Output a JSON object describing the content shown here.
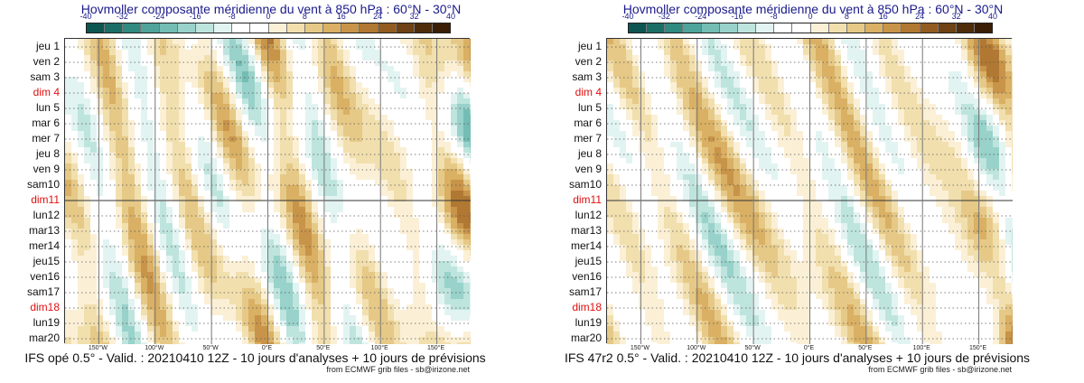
{
  "colorbar": {
    "ticks": [
      "-40",
      "-32",
      "-24",
      "-16",
      "-8",
      "0",
      "8",
      "16",
      "24",
      "32",
      "40"
    ],
    "colors": [
      "#0d5550",
      "#1a6e66",
      "#2f8a80",
      "#4ea39a",
      "#74bdb4",
      "#98d2ca",
      "#bee4de",
      "#e2f4f2",
      "#ffffff",
      "#ffffff",
      "#fbf0d6",
      "#f1dfae",
      "#e6c987",
      "#d9b064",
      "#c8944a",
      "#b07832",
      "#925c20",
      "#6e4214",
      "#4e2c0a",
      "#3a1f06"
    ]
  },
  "chart_data": [
    {
      "type": "heatmap",
      "title": "Hovmoller composante méridienne du vent à 850 hPa : 60°N - 30°N",
      "caption": "IFS opé 0.5° - Valid. : 20210410 12Z - 10 jours d'analyses + 10 jours de prévisions",
      "credit": "from ECMWF grib files - sb@irizone.net",
      "colorbar_range": [
        -40,
        40
      ],
      "colorbar_step": 4,
      "x_ticks": [
        "150°W",
        "100°W",
        "50°W",
        "0°E",
        "50°E",
        "100°E",
        "150°E"
      ],
      "x_tick_values": [
        -150,
        -100,
        -50,
        0,
        50,
        100,
        150
      ],
      "xlim": [
        -180,
        180
      ],
      "y_labels": [
        "jeu 1",
        "ven 2",
        "sam 3",
        "dim 4",
        "lun 5",
        "mar 6",
        "mer 7",
        "jeu 8",
        "ven 9",
        "sam10",
        "dim11",
        "lun12",
        "mar13",
        "mer14",
        "jeu15",
        "ven16",
        "sam17",
        "dim18",
        "lun19",
        "mar20"
      ],
      "sundays": [
        "dim 4",
        "dim11",
        "dim18"
      ],
      "analysis_forecast_split": "dim11",
      "seed": 3
    },
    {
      "type": "heatmap",
      "title": "Hovmoller composante méridienne du vent à 850 hPa : 60°N - 30°N",
      "caption": "IFS 47r2 0.5° - Valid. : 20210410 12Z - 10 jours d'analyses + 10 jours de prévisions",
      "credit": "from ECMWF grib files - sb@irizone.net",
      "colorbar_range": [
        -40,
        40
      ],
      "colorbar_step": 4,
      "x_ticks": [
        "150°W",
        "100°W",
        "50°W",
        "0°E",
        "50°E",
        "100°E",
        "150°E"
      ],
      "x_tick_values": [
        -150,
        -100,
        -50,
        0,
        50,
        100,
        150
      ],
      "xlim": [
        -180,
        180
      ],
      "y_labels": [
        "jeu 1",
        "ven 2",
        "sam 3",
        "dim 4",
        "lun 5",
        "mar 6",
        "mer 7",
        "jeu 8",
        "ven 9",
        "sam10",
        "dim11",
        "lun12",
        "mar13",
        "mer14",
        "jeu15",
        "ven16",
        "sam17",
        "dim18",
        "lun19",
        "mar20"
      ],
      "sundays": [
        "dim 4",
        "dim11",
        "dim18"
      ],
      "analysis_forecast_split": "dim11",
      "seed": 7
    }
  ]
}
